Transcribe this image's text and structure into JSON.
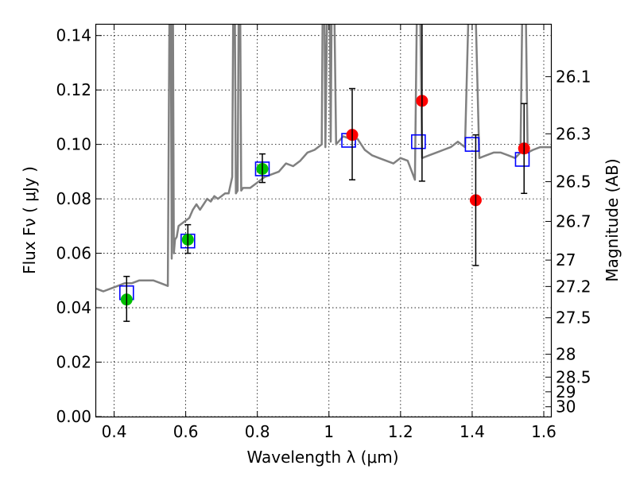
{
  "chart_data": {
    "type": "scatter",
    "xlabel": "Wavelength  λ (μm)",
    "ylabel": "Flux  Fν  ( μJy )",
    "ylabel_right": "Magnitude (AB)",
    "xlim": [
      0.35,
      1.62
    ],
    "ylim": [
      0.0,
      0.144
    ],
    "grid": true,
    "x_ticks": [
      {
        "value": 0.4,
        "label": "0.4"
      },
      {
        "value": 0.6,
        "label": "0.6"
      },
      {
        "value": 0.8,
        "label": "0.8"
      },
      {
        "value": 1.0,
        "label": "1"
      },
      {
        "value": 1.2,
        "label": "1.2"
      },
      {
        "value": 1.4,
        "label": "1.4"
      },
      {
        "value": 1.6,
        "label": "1.6"
      }
    ],
    "y_ticks": [
      {
        "value": 0.0,
        "label": "0.00"
      },
      {
        "value": 0.02,
        "label": "0.02"
      },
      {
        "value": 0.04,
        "label": "0.04"
      },
      {
        "value": 0.06,
        "label": "0.06"
      },
      {
        "value": 0.08,
        "label": "0.08"
      },
      {
        "value": 0.1,
        "label": "0.10"
      },
      {
        "value": 0.12,
        "label": "0.12"
      },
      {
        "value": 0.14,
        "label": "0.14"
      }
    ],
    "right_ticks": [
      {
        "flux": 0.1249,
        "label": "26.1"
      },
      {
        "flux": 0.1039,
        "label": "26.3"
      },
      {
        "flux": 0.0863,
        "label": "26.5"
      },
      {
        "flux": 0.0717,
        "label": "26.7"
      },
      {
        "flux": 0.0575,
        "label": "27"
      },
      {
        "flux": 0.0478,
        "label": "27.2"
      },
      {
        "flux": 0.0363,
        "label": "27.5"
      },
      {
        "flux": 0.0229,
        "label": "28"
      },
      {
        "flux": 0.0145,
        "label": "28.5"
      },
      {
        "flux": 0.0091,
        "label": "29"
      },
      {
        "flux": 0.0036,
        "label": "30"
      }
    ],
    "series": [
      {
        "name": "model-spectrum",
        "kind": "line",
        "color": "#808080",
        "x": [
          0.35,
          0.37,
          0.39,
          0.41,
          0.43,
          0.45,
          0.47,
          0.49,
          0.51,
          0.53,
          0.55,
          0.557,
          0.561,
          0.563,
          0.567,
          0.57,
          0.575,
          0.58,
          0.59,
          0.6,
          0.61,
          0.62,
          0.63,
          0.64,
          0.65,
          0.66,
          0.67,
          0.68,
          0.69,
          0.7,
          0.71,
          0.72,
          0.73,
          0.735,
          0.74,
          0.745,
          0.75,
          0.755,
          0.76,
          0.78,
          0.8,
          0.82,
          0.84,
          0.86,
          0.88,
          0.9,
          0.92,
          0.94,
          0.96,
          0.98,
          0.985,
          0.99,
          1.0,
          1.005,
          1.01,
          1.02,
          1.04,
          1.06,
          1.08,
          1.1,
          1.12,
          1.14,
          1.16,
          1.18,
          1.2,
          1.22,
          1.24,
          1.25,
          1.26,
          1.28,
          1.3,
          1.32,
          1.34,
          1.36,
          1.38,
          1.4,
          1.42,
          1.44,
          1.46,
          1.48,
          1.5,
          1.52,
          1.535,
          1.545,
          1.555,
          1.57,
          1.59,
          1.62
        ],
        "y": [
          0.047,
          0.046,
          0.047,
          0.048,
          0.049,
          0.049,
          0.05,
          0.05,
          0.05,
          0.049,
          0.048,
          0.2,
          0.058,
          0.2,
          0.06,
          0.065,
          0.066,
          0.07,
          0.071,
          0.072,
          0.073,
          0.076,
          0.078,
          0.076,
          0.078,
          0.08,
          0.079,
          0.081,
          0.08,
          0.081,
          0.082,
          0.082,
          0.088,
          0.2,
          0.082,
          0.083,
          0.2,
          0.083,
          0.084,
          0.084,
          0.086,
          0.088,
          0.089,
          0.09,
          0.093,
          0.092,
          0.094,
          0.097,
          0.098,
          0.1,
          0.2,
          0.099,
          0.2,
          0.101,
          0.2,
          0.1,
          0.103,
          0.102,
          0.102,
          0.098,
          0.096,
          0.095,
          0.094,
          0.093,
          0.095,
          0.094,
          0.087,
          0.2,
          0.095,
          0.096,
          0.097,
          0.098,
          0.099,
          0.101,
          0.099,
          0.2,
          0.095,
          0.096,
          0.097,
          0.097,
          0.096,
          0.095,
          0.097,
          0.2,
          0.097,
          0.098,
          0.099,
          0.099
        ]
      },
      {
        "name": "model-photometry",
        "kind": "open-square",
        "color": "#0000ff",
        "x": [
          0.435,
          0.606,
          0.814,
          1.055,
          1.25,
          1.4,
          1.54
        ],
        "y": [
          0.0455,
          0.0645,
          0.091,
          0.1015,
          0.101,
          0.1,
          0.0945
        ]
      },
      {
        "name": "observed-optical",
        "kind": "filled-circle",
        "color": "#00c000",
        "x": [
          0.435,
          0.606,
          0.814
        ],
        "y": [
          0.043,
          0.065,
          0.091
        ]
      },
      {
        "name": "observed-nir",
        "kind": "filled-circle",
        "color": "#ff0000",
        "x": [
          1.065,
          1.26,
          1.41,
          1.545
        ],
        "y": [
          0.1035,
          0.116,
          0.0795,
          0.0985
        ]
      },
      {
        "name": "error-bars",
        "kind": "errorbar",
        "color": "#000000",
        "x": [
          0.435,
          0.606,
          0.814,
          1.065,
          1.26,
          1.41,
          1.545
        ],
        "y_low": [
          0.035,
          0.06,
          0.086,
          0.087,
          0.0865,
          0.0555,
          0.082
        ],
        "y_high": [
          0.0515,
          0.0705,
          0.0965,
          0.1205,
          0.1445,
          0.1035,
          0.115
        ]
      }
    ]
  }
}
